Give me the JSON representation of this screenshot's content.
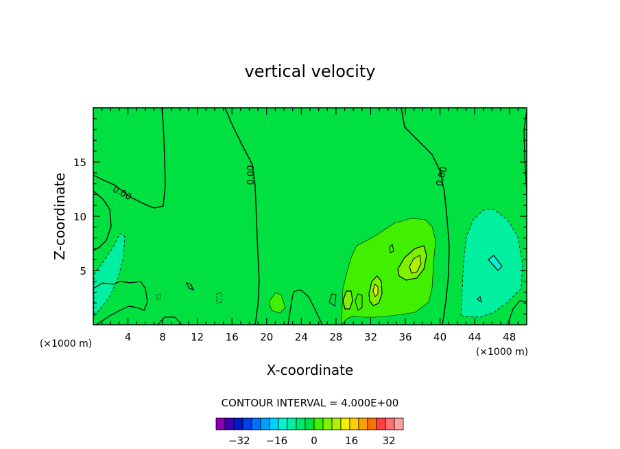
{
  "chart_data": {
    "type": "heatmap",
    "title": "vertical velocity",
    "xlabel": "X-coordinate",
    "ylabel": "Z-coordinate",
    "x_unit_left": "(×1000 m)",
    "x_unit_right": "(×1000 m)",
    "xlim": [
      0,
      50
    ],
    "ylim": [
      0,
      20
    ],
    "xticks": [
      "4",
      "8",
      "12",
      "16",
      "20",
      "24",
      "28",
      "32",
      "36",
      "40",
      "44",
      "48"
    ],
    "xtick_values": [
      4,
      8,
      12,
      16,
      20,
      24,
      28,
      32,
      36,
      40,
      44,
      48
    ],
    "yticks": [
      "5",
      "10",
      "15"
    ],
    "ytick_values": [
      5,
      10,
      15
    ],
    "contour_interval_text": "CONTOUR INTERVAL = 4.000E+00",
    "contour_labels": [
      "0.00",
      "0.00",
      "0.00"
    ],
    "colorbar": {
      "tick_labels": [
        "−32",
        "−16",
        "0",
        "16",
        "32"
      ],
      "tick_values": [
        -32,
        -16,
        0,
        16,
        32
      ],
      "levels": [
        -40,
        -36,
        -32,
        -28,
        -24,
        -20,
        -16,
        -12,
        -8,
        -4,
        0,
        4,
        8,
        12,
        16,
        20,
        24,
        28,
        32,
        36,
        40
      ],
      "colors": [
        "#8a00b0",
        "#3a00b0",
        "#0018c8",
        "#0040e8",
        "#0070ff",
        "#00a0ff",
        "#00d0ff",
        "#00f0d0",
        "#00f0a0",
        "#00e870",
        "#00e040",
        "#40f000",
        "#80f000",
        "#b0f000",
        "#f0f000",
        "#ffd000",
        "#ffa000",
        "#ff7000",
        "#ff4040",
        "#ff7070",
        "#ffa0a0"
      ]
    },
    "regions": [
      {
        "value": 0,
        "note": "background field",
        "color": "#00e040"
      },
      {
        "value": 4,
        "color": "#40f000"
      },
      {
        "value": 8,
        "color": "#80f000"
      },
      {
        "value": 12,
        "color": "#b0f000"
      },
      {
        "value": -4,
        "color": "#00e870"
      },
      {
        "value": -8,
        "color": "#00f0a0"
      }
    ]
  }
}
